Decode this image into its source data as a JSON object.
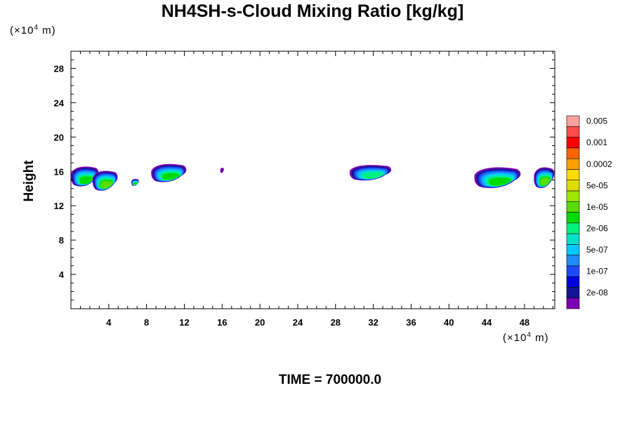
{
  "chart_data": {
    "type": "heatmap",
    "title": "NH4SH-s-Cloud Mixing Ratio [kg/kg]",
    "ylabel": "Height",
    "yunit": {
      "base": "(×10",
      "exp": "4",
      "unit": " m)"
    },
    "xunit": {
      "base": "(×10",
      "exp": "4",
      "unit": " m)"
    },
    "xlim": [
      0,
      51.2
    ],
    "ylim": [
      0,
      30
    ],
    "xticks": [
      4,
      8,
      12,
      16,
      20,
      24,
      28,
      32,
      36,
      40,
      44,
      48
    ],
    "yticks": [
      4,
      8,
      12,
      16,
      20,
      24,
      28
    ],
    "colorbar": {
      "colors": [
        "#7a00b4",
        "#141496",
        "#0000dc",
        "#1e4bff",
        "#1e8cff",
        "#00c8ff",
        "#00e1c8",
        "#00f07d",
        "#00dc00",
        "#5adc00",
        "#a0e600",
        "#dcdc00",
        "#ffdc00",
        "#ffa000",
        "#ff6400",
        "#ff0000",
        "#ff4b4b",
        "#ffa0a0"
      ],
      "labels": [
        "2e-08",
        "1e-07",
        "5e-07",
        "2e-06",
        "1e-05",
        "5e-05",
        "0.0002",
        "0.001",
        "0.005"
      ]
    },
    "cloud_patches": [
      {
        "x0": 0.0,
        "x1": 3.0,
        "ymin": 14.2,
        "ymax": 16.5,
        "peak": 8
      },
      {
        "x0": 2.3,
        "x1": 5.0,
        "ymin": 13.7,
        "ymax": 16.0,
        "peak": 9
      },
      {
        "x0": 6.4,
        "x1": 7.2,
        "ymin": 14.3,
        "ymax": 15.1,
        "peak": 8
      },
      {
        "x0": 8.5,
        "x1": 12.3,
        "ymin": 14.7,
        "ymax": 16.8,
        "peak": 8
      },
      {
        "x0": 15.8,
        "x1": 16.2,
        "ymin": 15.8,
        "ymax": 16.4,
        "peak": 0
      },
      {
        "x0": 29.5,
        "x1": 34.0,
        "ymin": 14.9,
        "ymax": 16.7,
        "peak": 7
      },
      {
        "x0": 42.7,
        "x1": 47.7,
        "ymin": 14.0,
        "ymax": 16.4,
        "peak": 8
      },
      {
        "x0": 49.0,
        "x1": 51.2,
        "ymin": 14.0,
        "ymax": 16.4,
        "peak": 9
      }
    ]
  },
  "footer": {
    "time": "TIME = 700000.0"
  }
}
